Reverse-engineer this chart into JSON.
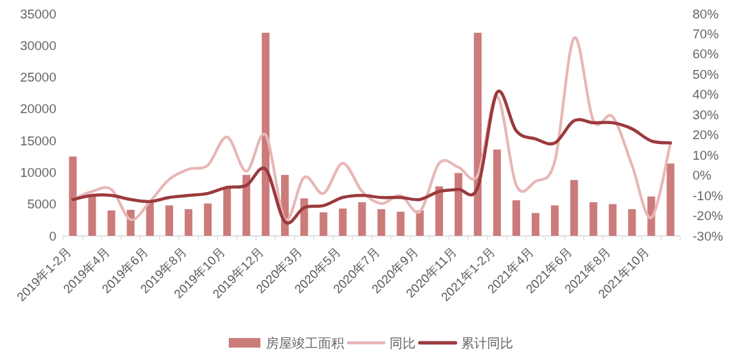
{
  "chart_data": {
    "type": "bar",
    "categories": [
      "2019年1-2月",
      null,
      "2019年4月",
      null,
      "2019年6月",
      null,
      "2019年8月",
      null,
      "2019年10月",
      null,
      "2019年12月",
      null,
      "2020年3月",
      null,
      "2020年5月",
      null,
      "2020年7月",
      null,
      "2020年9月",
      null,
      "2020年11月",
      null,
      "2021年1-2月",
      null,
      "2021年4月",
      null,
      "2021年6月",
      null,
      "2021年8月",
      null,
      "2021年10月",
      null
    ],
    "series": [
      {
        "name": "房屋竣工面积",
        "color": "#cc7b7b",
        "values": [
          12500,
          6200,
          4000,
          4100,
          5200,
          4800,
          4200,
          5100,
          7500,
          9600,
          32000,
          9600,
          5900,
          3700,
          4300,
          5300,
          4200,
          3800,
          4000,
          7800,
          9900,
          32000,
          13600,
          5600,
          3600,
          4800,
          8800,
          5300,
          5000,
          4200,
          6200,
          11400
        ]
      },
      {
        "name": "同比",
        "type": "line",
        "axis": "y2",
        "color": "#e8b6b6",
        "values": [
          -12,
          -8,
          -7,
          -22,
          -13,
          -2,
          3,
          5,
          19,
          2,
          20,
          -22,
          -1,
          -9,
          6,
          -8,
          -14,
          -10,
          -18,
          6,
          4,
          0,
          39,
          -5,
          -3,
          7,
          68,
          27,
          29,
          5,
          -21,
          16
        ]
      },
      {
        "name": "累计同比",
        "type": "line",
        "axis": "y2",
        "color": "#9b3a3d",
        "values": [
          -12,
          -10,
          -10,
          -12,
          -13,
          -11,
          -10,
          -9,
          -6,
          -5,
          3,
          -23,
          -16,
          -15,
          -11,
          -10,
          -11,
          -11,
          -12,
          -8,
          -7,
          -6,
          41,
          22,
          18,
          16,
          27,
          26,
          26,
          23,
          17,
          16
        ]
      }
    ],
    "ylim": [
      0,
      35000
    ],
    "yticks": [
      0,
      5000,
      10000,
      15000,
      20000,
      25000,
      30000,
      35000
    ],
    "y2lim": [
      -30,
      80
    ],
    "y2ticks": [
      {
        "value": -30,
        "label": "-30%"
      },
      {
        "value": -20,
        "label": "-20%"
      },
      {
        "value": -10,
        "label": "-10%"
      },
      {
        "value": 0,
        "label": "0%"
      },
      {
        "value": 10,
        "label": "10%"
      },
      {
        "value": 20,
        "label": "20%"
      },
      {
        "value": 30,
        "label": "30%"
      },
      {
        "value": 40,
        "label": "40%"
      },
      {
        "value": 50,
        "label": "50%"
      },
      {
        "value": 60,
        "label": "60%"
      },
      {
        "value": 70,
        "label": "70%"
      },
      {
        "value": 80,
        "label": "80%"
      }
    ],
    "legend": "bottom"
  }
}
